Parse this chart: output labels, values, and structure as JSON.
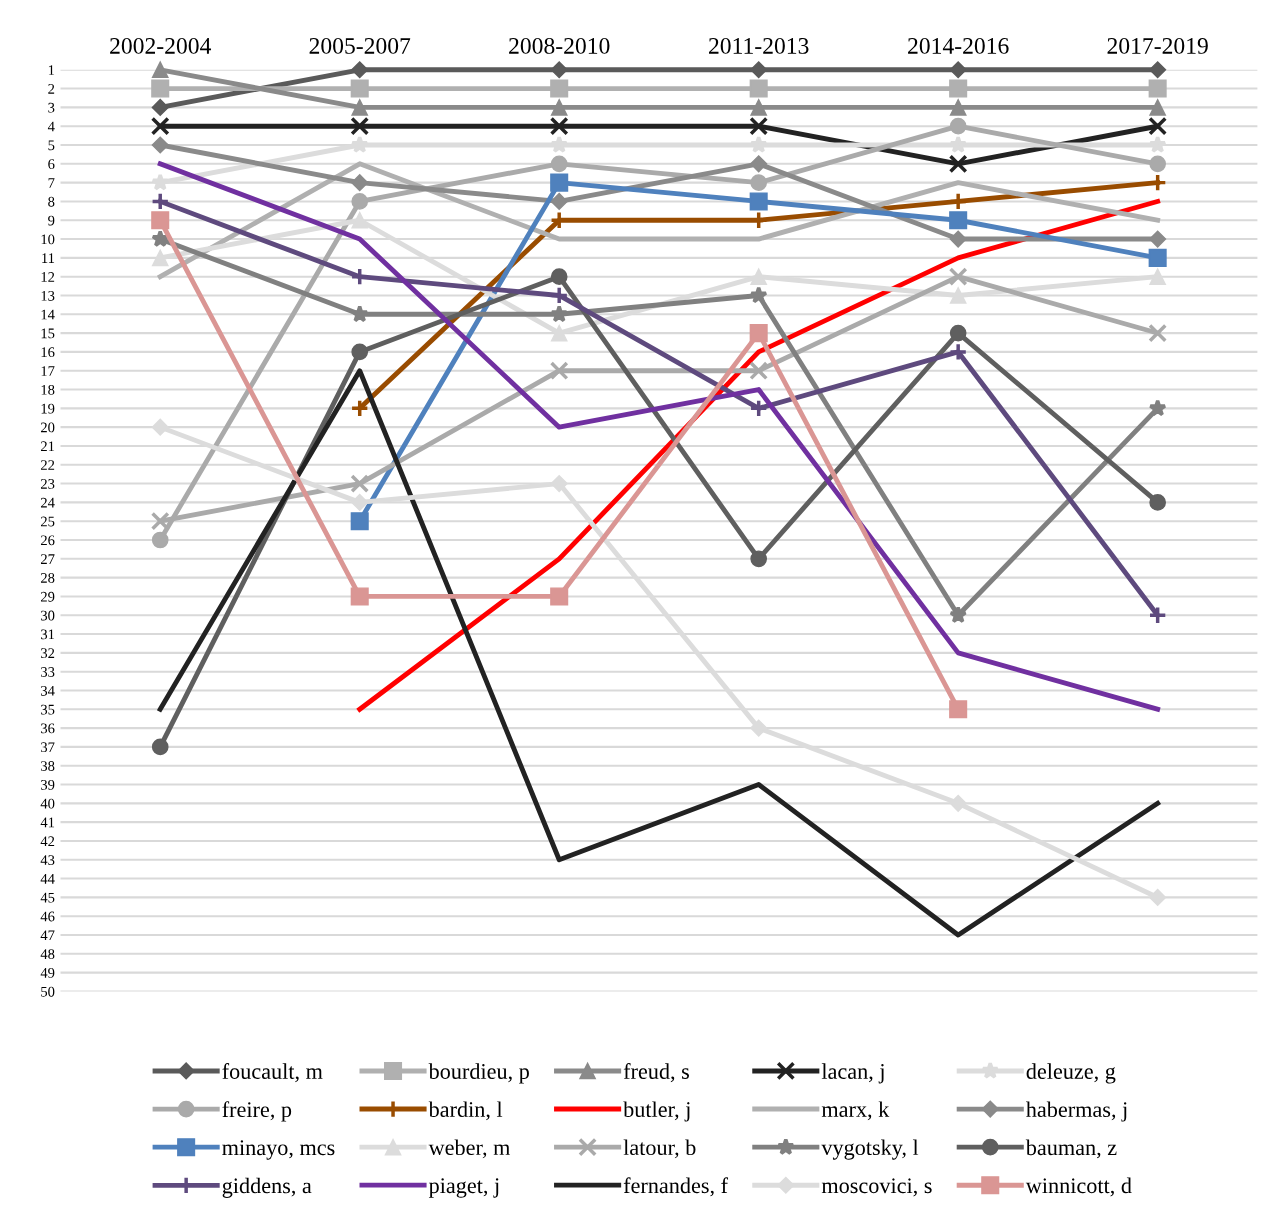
{
  "chart_data": {
    "type": "line",
    "categories": [
      "2002-2004",
      "2005-2007",
      "2008-2010",
      "2011-2013",
      "2014-2016",
      "2017-2019"
    ],
    "ylim": [
      50,
      1
    ],
    "yticks": [
      1,
      2,
      3,
      4,
      5,
      6,
      7,
      8,
      9,
      10,
      11,
      12,
      13,
      14,
      15,
      16,
      17,
      18,
      19,
      20,
      21,
      22,
      23,
      24,
      25,
      26,
      27,
      28,
      29,
      30,
      31,
      32,
      33,
      34,
      35,
      36,
      37,
      38,
      39,
      40,
      41,
      42,
      43,
      44,
      45,
      46,
      47,
      48,
      49,
      50
    ],
    "grid": "y",
    "legend": "bottom",
    "line_style": "solid",
    "series": [
      {
        "name": "foucault, m",
        "color": "#5a5a5a",
        "marker": "diamond",
        "values": [
          3,
          1,
          1,
          1,
          1,
          1
        ]
      },
      {
        "name": "bourdieu, p",
        "color": "#b0b0b0",
        "marker": "square",
        "values": [
          2,
          2,
          2,
          2,
          2,
          2
        ]
      },
      {
        "name": "freud, s",
        "color": "#8a8a8a",
        "marker": "triangle",
        "values": [
          1,
          3,
          3,
          3,
          3,
          3
        ]
      },
      {
        "name": "lacan, j",
        "color": "#222222",
        "marker": "x",
        "values": [
          4,
          4,
          4,
          4,
          6,
          4
        ]
      },
      {
        "name": "deleuze, g",
        "color": "#dcdcdc",
        "marker": "star",
        "values": [
          7,
          5,
          5,
          5,
          5,
          5
        ]
      },
      {
        "name": "freire, p",
        "color": "#aaaaaa",
        "marker": "circle",
        "values": [
          26,
          8,
          6,
          7,
          4,
          6
        ]
      },
      {
        "name": "bardin, l",
        "color": "#994c00",
        "marker": "cross",
        "values": [
          null,
          19,
          9,
          9,
          8,
          7
        ]
      },
      {
        "name": "butler, j",
        "color": "#ff0000",
        "marker": "none",
        "values": [
          null,
          35,
          27,
          16,
          11,
          8
        ]
      },
      {
        "name": "marx, k",
        "color": "#b0b0b0",
        "marker": "none",
        "values": [
          12,
          6,
          10,
          10,
          7,
          9
        ]
      },
      {
        "name": "habermas, j",
        "color": "#8a8a8a",
        "marker": "diamond",
        "values": [
          5,
          7,
          8,
          6,
          10,
          10
        ]
      },
      {
        "name": "minayo, mcs",
        "color": "#4f81bd",
        "marker": "square",
        "values": [
          null,
          25,
          7,
          8,
          9,
          11
        ]
      },
      {
        "name": "weber, m",
        "color": "#dcdcdc",
        "marker": "triangle",
        "values": [
          11,
          9,
          15,
          12,
          13,
          12
        ]
      },
      {
        "name": "latour, b",
        "color": "#aaaaaa",
        "marker": "x",
        "values": [
          25,
          23,
          17,
          17,
          12,
          15
        ]
      },
      {
        "name": "vygotsky, l",
        "color": "#808080",
        "marker": "star",
        "values": [
          10,
          14,
          14,
          13,
          30,
          19
        ]
      },
      {
        "name": "bauman, z",
        "color": "#5f5f5f",
        "marker": "circle",
        "values": [
          37,
          16,
          12,
          27,
          15,
          24
        ]
      },
      {
        "name": "giddens, a",
        "color": "#5e4a7e",
        "marker": "cross",
        "values": [
          8,
          12,
          13,
          19,
          16,
          30
        ]
      },
      {
        "name": "piaget, j",
        "color": "#7030a0",
        "marker": "none",
        "values": [
          6,
          10,
          20,
          18,
          32,
          35
        ]
      },
      {
        "name": "fernandes, f",
        "color": "#222222",
        "marker": "none",
        "values": [
          35,
          17,
          43,
          39,
          47,
          40
        ]
      },
      {
        "name": "moscovici, s",
        "color": "#dcdcdc",
        "marker": "diamond",
        "values": [
          20,
          24,
          23,
          36,
          40,
          45
        ]
      },
      {
        "name": "winnicott, d",
        "color": "#da9694",
        "marker": "square",
        "values": [
          9,
          29,
          29,
          15,
          35,
          null
        ]
      }
    ]
  }
}
